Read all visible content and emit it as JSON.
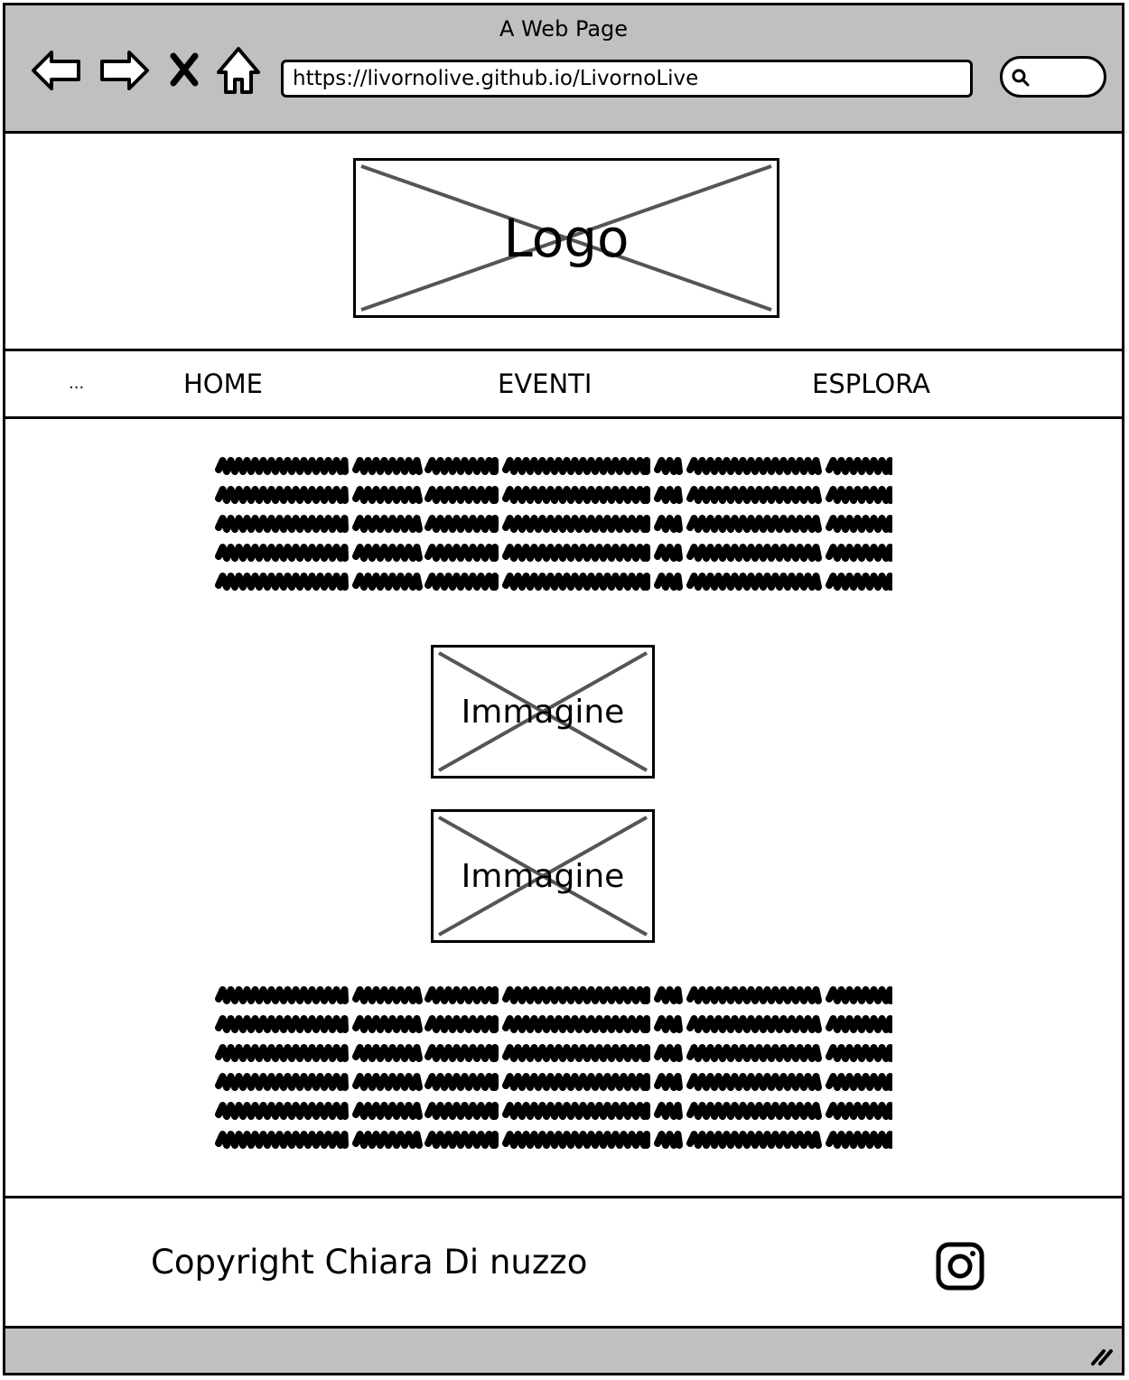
{
  "window": {
    "title": "A Web Page"
  },
  "browser": {
    "url": "https://livornolive.github.io/LivornoLive",
    "icons": [
      "back-arrow-icon",
      "forward-arrow-icon",
      "stop-icon",
      "home-icon",
      "search-icon"
    ]
  },
  "header": {
    "logo_label": "Logo"
  },
  "navbar": {
    "more_label": "...",
    "items": [
      {
        "label": "HOME"
      },
      {
        "label": "EVENTI"
      },
      {
        "label": "ESPLORA"
      }
    ]
  },
  "main": {
    "images": [
      {
        "label": "Immagine"
      },
      {
        "label": "Immagine"
      }
    ]
  },
  "footer": {
    "copyright": "Copyright Chiara Di nuzzo",
    "social_icon": "instagram-icon"
  }
}
